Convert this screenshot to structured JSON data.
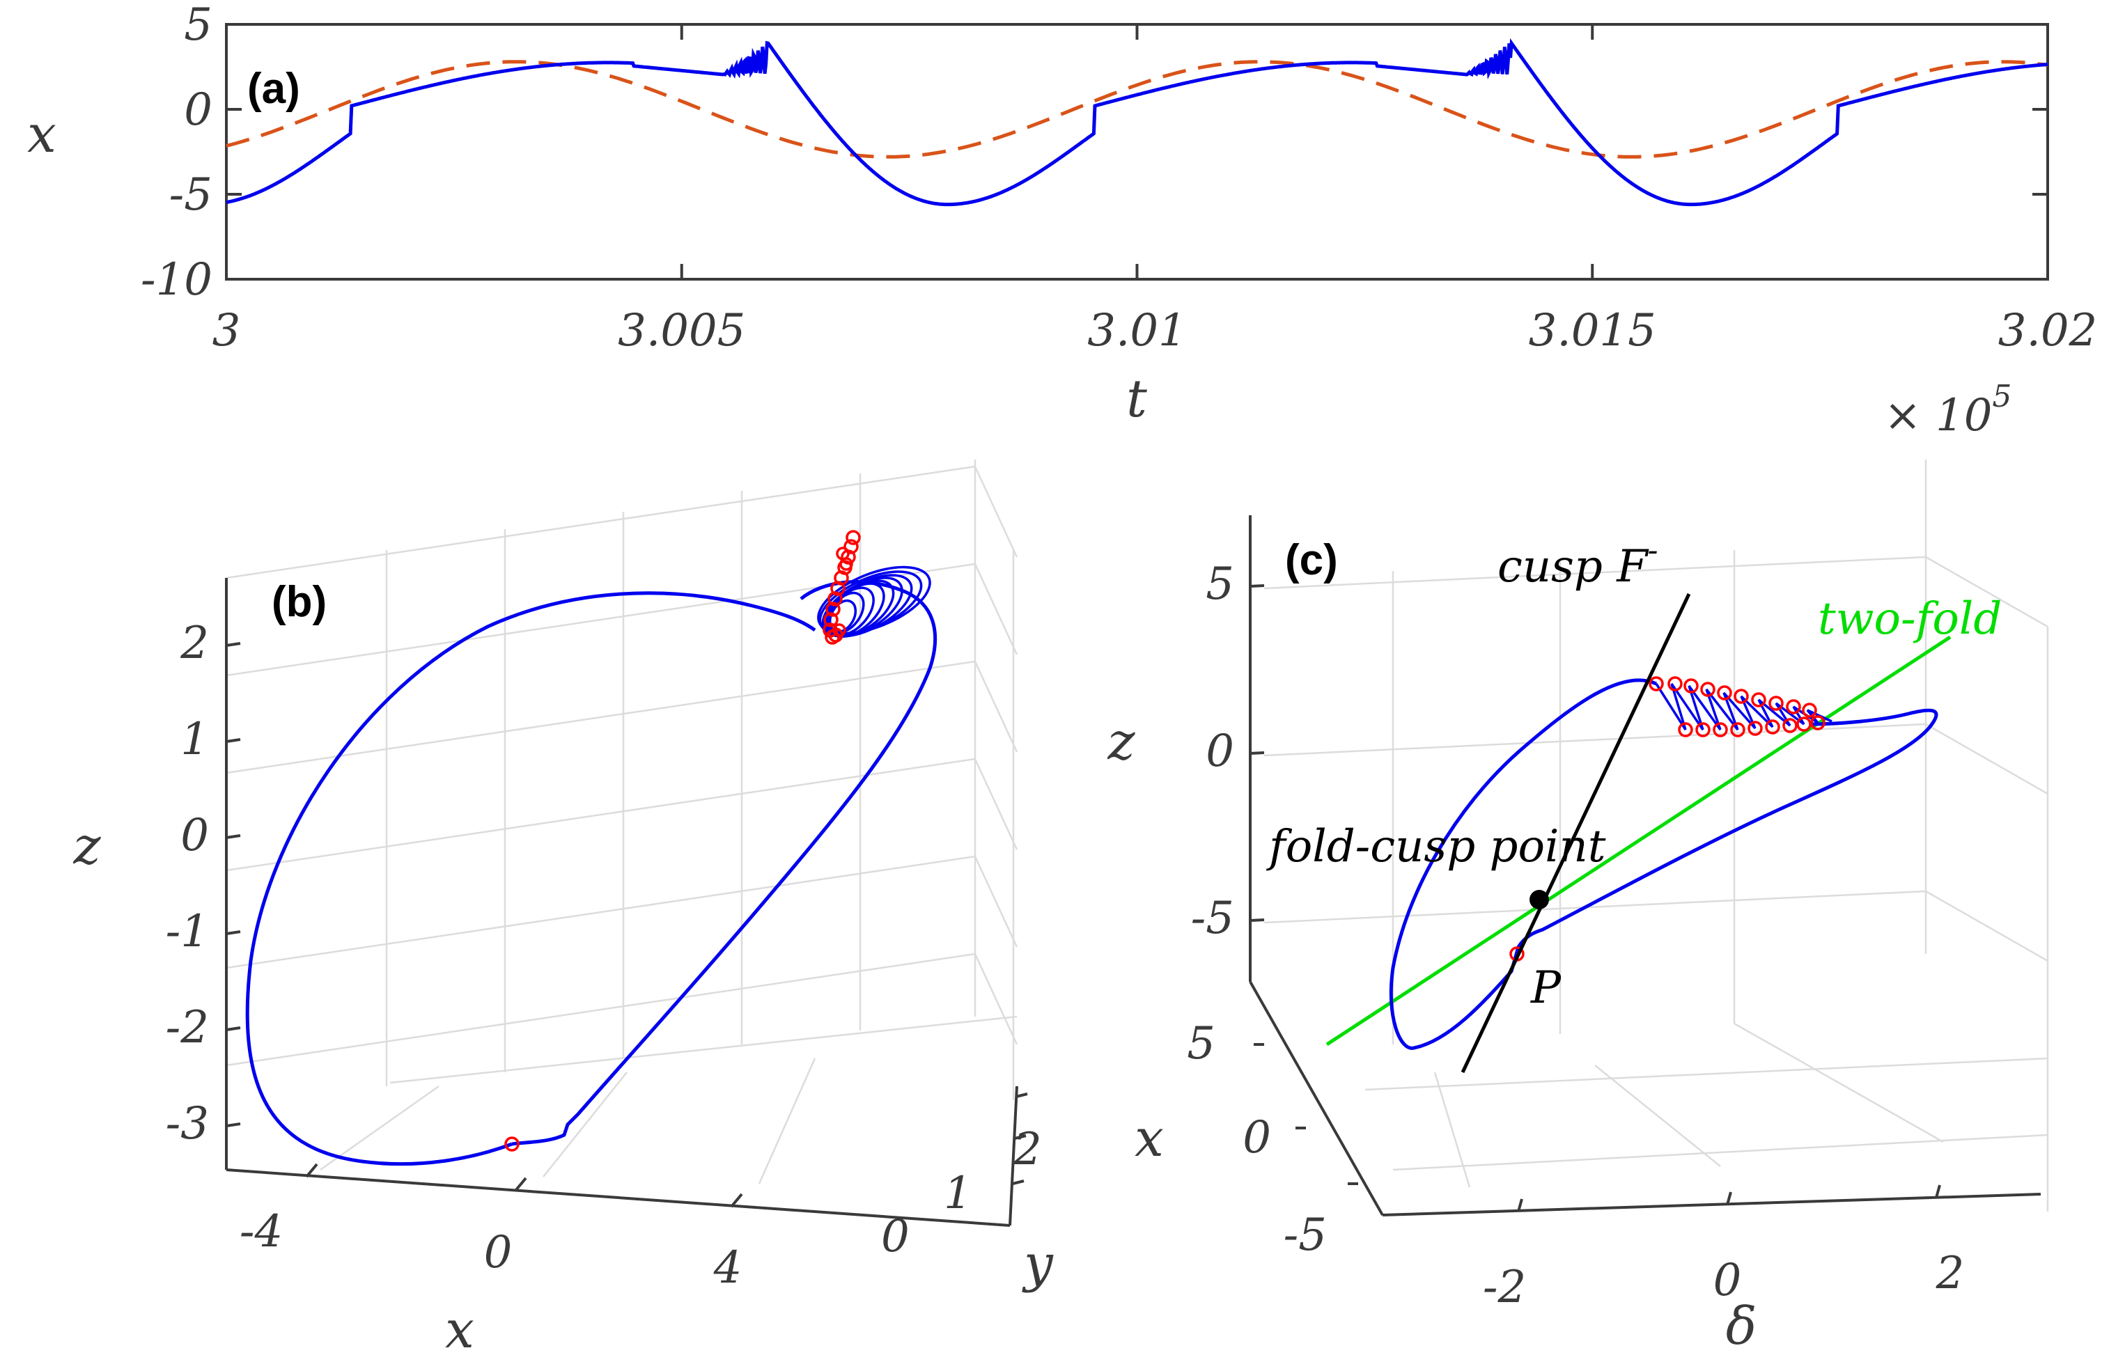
{
  "chart_data": [
    {
      "type": "line",
      "panel_label": "(a)",
      "xlabel": "t",
      "ylabel": "x",
      "x_multiplier": "× 10",
      "x_multiplier_exp": "5",
      "xlim": [
        3,
        3.02
      ],
      "ylim": [
        -10,
        5
      ],
      "xticks": [
        "3",
        "3.005",
        "3.01",
        "3.015",
        "3.02"
      ],
      "yticks": [
        "5",
        "0",
        "-5",
        "-10"
      ],
      "series": [
        {
          "name": "x(t)",
          "color": "#0000ee",
          "style": "solid"
        },
        {
          "name": "delta(t)",
          "color": "#d95319",
          "style": "dashed",
          "amplitude": 2.8
        }
      ]
    },
    {
      "type": "line3d",
      "panel_label": "(b)",
      "xlabel": "x",
      "ylabel": "y",
      "zlabel": "z",
      "xticks": [
        "-4",
        "0",
        "4"
      ],
      "yticks": [
        "0",
        "1",
        "2"
      ],
      "zticks": [
        "2",
        "1",
        "0",
        "-1",
        "-2",
        "-3"
      ],
      "series": [
        {
          "name": "trajectory",
          "color": "#0000ee"
        },
        {
          "name": "markers",
          "color": "#ff0000"
        }
      ]
    },
    {
      "type": "line3d",
      "panel_label": "(c)",
      "xlabel": "x",
      "ylabel": "δ",
      "zlabel": "z",
      "xticks": [
        "5",
        "0",
        "-5"
      ],
      "deltaticks": [
        "-2",
        "0",
        "2"
      ],
      "zticks": [
        "5",
        "0",
        "-5"
      ],
      "annotations": {
        "cusp": "cusp F",
        "cusp_sup": "-",
        "two_fold": "two-fold",
        "fold_cusp": "fold-cusp point",
        "point_p": "P"
      },
      "colors": {
        "cusp_line": "#000000",
        "two_fold_line": "#00dd00",
        "trajectory": "#0000ee",
        "markers": "#ff0000"
      }
    }
  ]
}
